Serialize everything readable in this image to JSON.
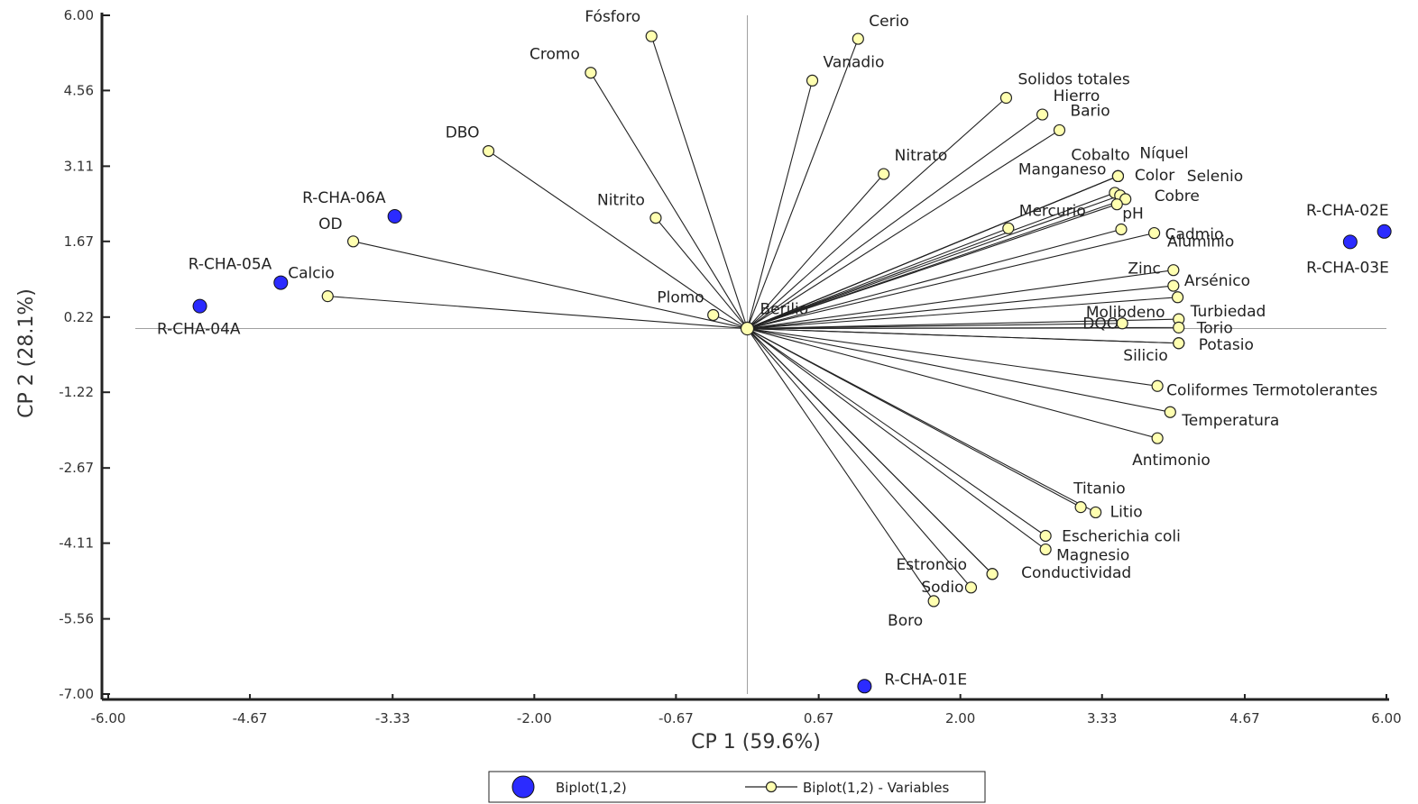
{
  "chart_data": {
    "type": "scatter",
    "subtype": "biplot",
    "xlabel": "CP 1 (59.6%)",
    "ylabel": "CP 2 (28.1%)",
    "xlim": [
      -6.0,
      6.0
    ],
    "ylim": [
      -7.0,
      6.0
    ],
    "xticks": [
      "-6.00",
      "-4.67",
      "-3.33",
      "-2.00",
      "-0.67",
      "0.67",
      "2.00",
      "3.33",
      "4.67",
      "6.00"
    ],
    "yticks": [
      "6.00",
      "4.56",
      "3.11",
      "1.67",
      "0.22",
      "-1.22",
      "-2.67",
      "-4.11",
      "-5.56",
      "-7.00"
    ],
    "grid": false,
    "origin_lines": true,
    "colors": {
      "sites": "#2b2bff",
      "variables_fill": "#ffffb0",
      "vectors": "#222222",
      "axes": "#222222",
      "origin_lines": "#a0a0a0"
    },
    "legend": {
      "placement": "bottom",
      "entries": [
        {
          "label": "Biplot(1,2)",
          "marker": "blue-circle"
        },
        {
          "label": "Biplot(1,2) - Variables",
          "marker": "yellow-circle-line"
        }
      ]
    },
    "series": [
      {
        "name": "Biplot(1,2)",
        "points": [
          {
            "label": "R-CHA-01E",
            "x": 1.1,
            "y": -6.85
          },
          {
            "label": "R-CHA-02E",
            "x": 5.98,
            "y": 1.86
          },
          {
            "label": "R-CHA-03E",
            "x": 5.66,
            "y": 1.66
          },
          {
            "label": "R-CHA-04A",
            "x": -5.14,
            "y": 0.43
          },
          {
            "label": "R-CHA-05A",
            "x": -4.38,
            "y": 0.88
          },
          {
            "label": "R-CHA-06A",
            "x": -3.31,
            "y": 2.15
          }
        ]
      },
      {
        "name": "Biplot(1,2) - Variables",
        "points": [
          {
            "label": "Fósforo",
            "x": -0.9,
            "y": 5.6
          },
          {
            "label": "Cerio",
            "x": 1.04,
            "y": 5.55
          },
          {
            "label": "Cromo",
            "x": -1.47,
            "y": 4.9
          },
          {
            "label": "Vanadio",
            "x": 0.61,
            "y": 4.75
          },
          {
            "label": "Solidos totales",
            "x": 2.43,
            "y": 4.42
          },
          {
            "label": "Hierro",
            "x": 2.77,
            "y": 4.1
          },
          {
            "label": "Bario",
            "x": 2.93,
            "y": 3.8
          },
          {
            "label": "DBO",
            "x": -2.43,
            "y": 3.4
          },
          {
            "label": "Nitrato",
            "x": 1.28,
            "y": 2.96
          },
          {
            "label": "Níquel",
            "x": 3.48,
            "y": 2.92
          },
          {
            "label": "Manganeso",
            "x": 3.48,
            "y": 2.92
          },
          {
            "label": "Cobalto",
            "x": 3.48,
            "y": 2.92
          },
          {
            "label": "Color",
            "x": 3.45,
            "y": 2.6
          },
          {
            "label": "Selenio",
            "x": 3.5,
            "y": 2.55
          },
          {
            "label": "Cobre",
            "x": 3.55,
            "y": 2.48
          },
          {
            "label": "pH",
            "x": 3.47,
            "y": 2.38
          },
          {
            "label": "Nitrito",
            "x": -0.86,
            "y": 2.12
          },
          {
            "label": "Mercurio",
            "x": 2.45,
            "y": 1.92
          },
          {
            "label": "Aluminio",
            "x": 3.51,
            "y": 1.9
          },
          {
            "label": "Cadmio",
            "x": 3.82,
            "y": 1.83
          },
          {
            "label": "OD",
            "x": -3.7,
            "y": 1.67
          },
          {
            "label": "Zinc",
            "x": 4.0,
            "y": 1.12
          },
          {
            "label": "Calcio",
            "x": -3.94,
            "y": 0.62
          },
          {
            "label": "Arsénico",
            "x": 4.0,
            "y": 0.82
          },
          {
            "label": "Molibdeno",
            "x": 4.04,
            "y": 0.6
          },
          {
            "label": "Plomo",
            "x": -0.32,
            "y": 0.26
          },
          {
            "label": "Berilio",
            "x": 0.0,
            "y": 0.02
          },
          {
            "label": "Turbiedad",
            "x": 4.05,
            "y": 0.18
          },
          {
            "label": "DQO",
            "x": 3.52,
            "y": 0.1
          },
          {
            "label": "Torio",
            "x": 4.05,
            "y": 0.02
          },
          {
            "label": "Potasio",
            "x": 4.05,
            "y": -0.28
          },
          {
            "label": "Silicio",
            "x": 4.05,
            "y": -0.28
          },
          {
            "label": "Coliformes Termotolerantes",
            "x": 3.85,
            "y": -1.1
          },
          {
            "label": "Temperatura",
            "x": 3.97,
            "y": -1.6
          },
          {
            "label": "Antimonio",
            "x": 3.85,
            "y": -2.1
          },
          {
            "label": "Titanio",
            "x": 3.13,
            "y": -3.42
          },
          {
            "label": "Litio",
            "x": 3.27,
            "y": -3.52
          },
          {
            "label": "Escherichia coli",
            "x": 2.8,
            "y": -3.97
          },
          {
            "label": "Magnesio",
            "x": 2.8,
            "y": -4.23
          },
          {
            "label": "Estroncio",
            "x": 2.3,
            "y": -4.7
          },
          {
            "label": "Conductividad",
            "x": 2.3,
            "y": -4.7
          },
          {
            "label": "Sodio",
            "x": 2.1,
            "y": -4.96
          },
          {
            "label": "Boro",
            "x": 1.75,
            "y": -5.22
          }
        ]
      }
    ]
  }
}
